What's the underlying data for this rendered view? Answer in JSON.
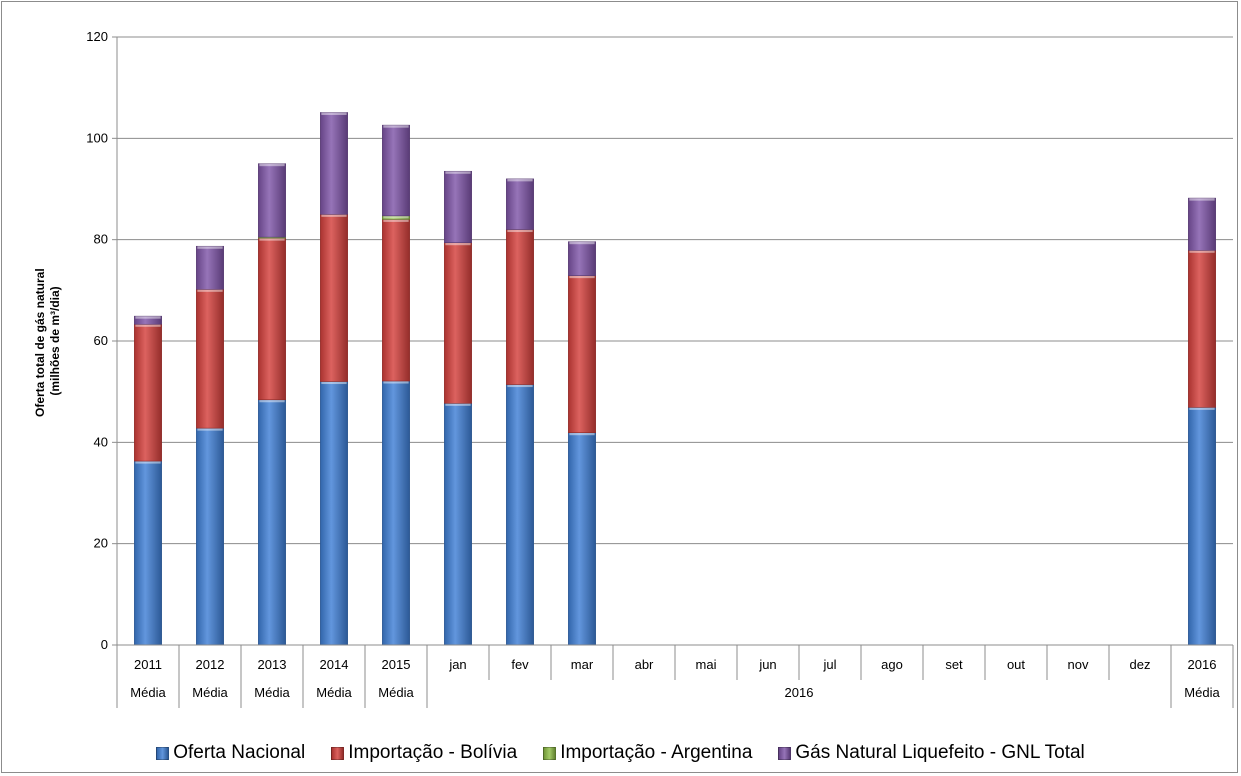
{
  "chart_data": {
    "type": "bar",
    "stacked": true,
    "ylabel_line1": "Oferta total de gás natural",
    "ylabel_line2": "(milhões de m³/dia)",
    "ylim": [
      0,
      120
    ],
    "yticks": [
      "0",
      "20",
      "40",
      "60",
      "80",
      "100",
      "120"
    ],
    "grid": true,
    "legend_position": "bottom",
    "categories": [
      "2011",
      "2012",
      "2013",
      "2014",
      "2015",
      "jan",
      "fev",
      "mar",
      "abr",
      "mai",
      "jun",
      "jul",
      "ago",
      "set",
      "out",
      "nov",
      "dez",
      "2016"
    ],
    "groups": [
      {
        "label": "Média",
        "span": 1
      },
      {
        "label": "Média",
        "span": 1
      },
      {
        "label": "Média",
        "span": 1
      },
      {
        "label": "Média",
        "span": 1
      },
      {
        "label": "Média",
        "span": 1
      },
      {
        "label": "2016",
        "span": 12
      },
      {
        "label": "Média",
        "span": 1
      }
    ],
    "series": [
      {
        "name": "Oferta Nacional",
        "color": "#3f7fd6",
        "values": [
          36.3,
          42.8,
          48.4,
          52.0,
          52.1,
          47.7,
          51.4,
          41.9,
          null,
          null,
          null,
          null,
          null,
          null,
          null,
          null,
          null,
          46.9
        ]
      },
      {
        "name": "Importação - Bolívia",
        "color": "#d4403c",
        "values": [
          27.0,
          27.4,
          31.9,
          33.0,
          31.9,
          31.7,
          30.6,
          31.0,
          null,
          null,
          null,
          null,
          null,
          null,
          null,
          null,
          null,
          31.0
        ]
      },
      {
        "name": "Importação - Argentina",
        "color": "#8fbe46",
        "values": [
          0.0,
          0.0,
          0.2,
          0.0,
          0.7,
          0.0,
          0.0,
          0.0,
          null,
          null,
          null,
          null,
          null,
          null,
          null,
          null,
          null,
          0.0
        ]
      },
      {
        "name": "Gás Natural Liquefeito - GNL Total",
        "color": "#7f55a8",
        "values": [
          1.6,
          8.5,
          14.5,
          20.1,
          17.9,
          14.1,
          10.0,
          6.7,
          null,
          null,
          null,
          null,
          null,
          null,
          null,
          null,
          null,
          10.3
        ]
      }
    ]
  }
}
